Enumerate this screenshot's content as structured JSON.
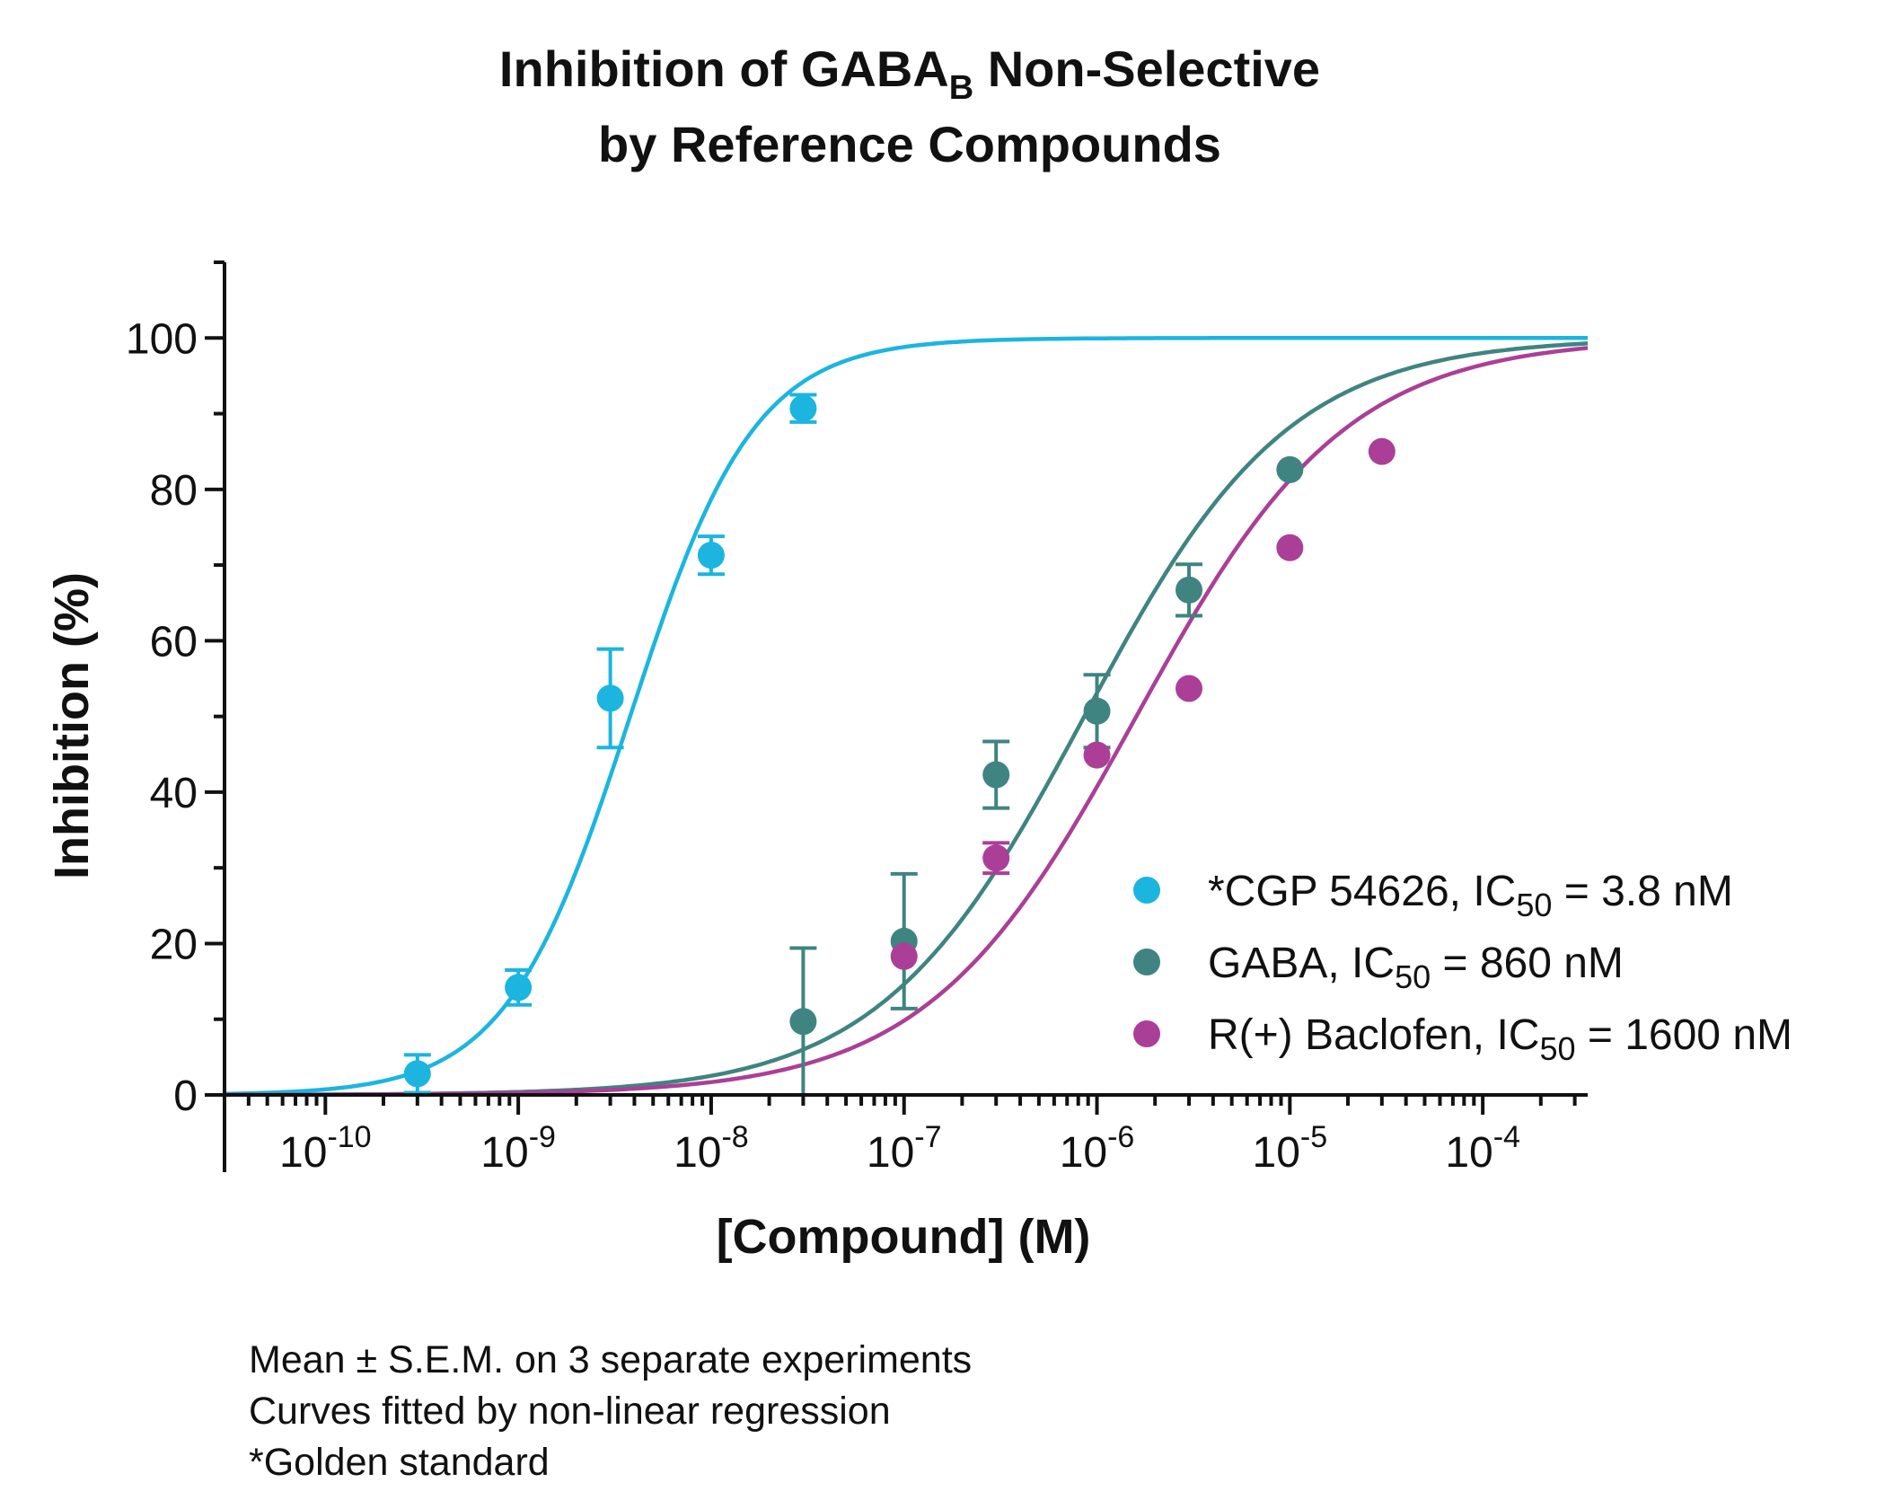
{
  "title": {
    "line1_prefix": "Inhibition of GABA",
    "line1_sub": "B",
    "line1_suffix": " Non-Selective",
    "line2": "by Reference Compounds"
  },
  "notes": [
    "Mean ± S.E.M. on 3 separate experiments",
    "Curves fitted by non-linear regression",
    "*Golden standard"
  ],
  "chart_data": {
    "type": "scatter",
    "title": "Inhibition of GABAB Non-Selective by Reference Compounds",
    "xlabel": "[Compound] (M)",
    "ylabel": "Inhibition (%)",
    "x_scale": "log",
    "xlim": [
      3e-11,
      0.00035
    ],
    "ylim": [
      0,
      110
    ],
    "x_ticks": [
      {
        "value": 1e-10,
        "base": "10",
        "exp": "-10"
      },
      {
        "value": 1e-09,
        "base": "10",
        "exp": "-9"
      },
      {
        "value": 1e-08,
        "base": "10",
        "exp": "-8"
      },
      {
        "value": 1e-07,
        "base": "10",
        "exp": "-7"
      },
      {
        "value": 1e-06,
        "base": "10",
        "exp": "-6"
      },
      {
        "value": 1e-05,
        "base": "10",
        "exp": "-5"
      },
      {
        "value": 0.0001,
        "base": "10",
        "exp": "-4"
      }
    ],
    "y_ticks": [
      0,
      20,
      40,
      60,
      80,
      100
    ],
    "grid": false,
    "legend_position": "bottom-right",
    "series": [
      {
        "name": "*CGP 54626, IC50 = 3.8 nM",
        "legend_prefix": "*CGP 54626, IC",
        "legend_sub": "50",
        "legend_suffix": " = 3.8 nM",
        "color": "#1bb5e0",
        "ic50": 3.8e-09,
        "hill": 1.35,
        "points": [
          {
            "x": 3e-10,
            "y": 2.8,
            "err": 2.5
          },
          {
            "x": 1e-09,
            "y": 14.2,
            "err": 2.3
          },
          {
            "x": 3e-09,
            "y": 52.4,
            "err": 6.5
          },
          {
            "x": 1e-08,
            "y": 71.3,
            "err": 2.5
          },
          {
            "x": 3e-08,
            "y": 90.7,
            "err": 1.8
          }
        ]
      },
      {
        "name": "GABA, IC50 = 860 nM",
        "legend_prefix": "GABA, IC",
        "legend_sub": "50",
        "legend_suffix": " = 860 nM",
        "color": "#3f8481",
        "ic50": 8.6e-07,
        "hill": 0.82,
        "points": [
          {
            "x": 3e-08,
            "y": 9.7,
            "err": 9.7
          },
          {
            "x": 1e-07,
            "y": 20.3,
            "err": 8.9
          },
          {
            "x": 3e-07,
            "y": 42.3,
            "err": 4.4
          },
          {
            "x": 1e-06,
            "y": 50.7,
            "err": 4.8
          },
          {
            "x": 3e-06,
            "y": 66.7,
            "err": 3.4
          },
          {
            "x": 1e-05,
            "y": 82.6,
            "err": 0.8
          }
        ]
      },
      {
        "name": "R(+) Baclofen, IC50 = 1600 nM",
        "legend_prefix": "R(+) Baclofen, IC",
        "legend_sub": "50",
        "legend_suffix": "  = 1600 nM",
        "color": "#ab3f97",
        "ic50": 1.6e-06,
        "hill": 0.8,
        "points": [
          {
            "x": 1e-07,
            "y": 18.3,
            "err": 1.0
          },
          {
            "x": 3e-07,
            "y": 31.3,
            "err": 2.0
          },
          {
            "x": 1e-06,
            "y": 44.9,
            "err": 0.5
          },
          {
            "x": 3e-06,
            "y": 53.7,
            "err": 0.5
          },
          {
            "x": 1e-05,
            "y": 72.3,
            "err": 0.5
          },
          {
            "x": 3e-05,
            "y": 85.0,
            "err": 0.5
          }
        ]
      }
    ]
  }
}
